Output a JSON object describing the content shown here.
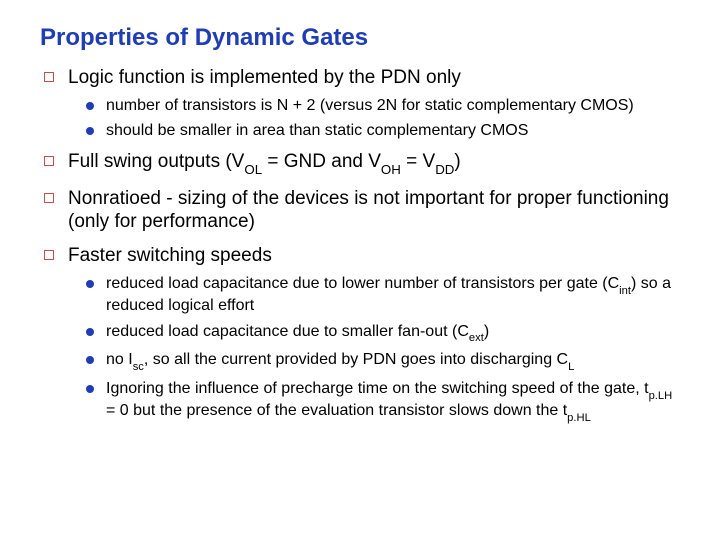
{
  "title": "Properties of Dynamic Gates",
  "colors": {
    "title": "#1f3db5",
    "bullet_level1": "#c05050",
    "bullet_level2": "#1f3db5",
    "text": "#000000",
    "background": "#ffffff"
  },
  "typography": {
    "title_fontsize": 24,
    "level1_fontsize": 19,
    "level2_fontsize": 16,
    "font_family": "Arial"
  },
  "items": [
    {
      "text": "Logic function is implemented by the PDN only",
      "sub": [
        {
          "text": "number of transistors is N + 2 (versus 2N for static complementary CMOS)"
        },
        {
          "text": "should be smaller in area than static complementary CMOS"
        }
      ]
    },
    {
      "html": "Full swing outputs (V<span class='sub'>OL</span> = GND and V<span class='sub'>OH</span> = V<span class='sub'>DD</span>)"
    },
    {
      "text": "Nonratioed - sizing of the devices is not important for proper functioning  (only for performance)"
    },
    {
      "text": "Faster switching speeds",
      "sub": [
        {
          "html": "reduced load capacitance due to lower number of transistors per gate (C<span class='sub'>int</span>) so a reduced logical effort"
        },
        {
          "html": "reduced load capacitance due to smaller fan-out (C<span class='sub'>ext</span>)"
        },
        {
          "html": "no I<span class='sub'>sc</span>, so all the current provided by PDN goes into discharging C<span class='sub'>L</span>"
        },
        {
          "html": "Ignoring the influence of precharge time on the switching speed of the gate, t<span class='sub'>p.LH</span> = 0 but the presence of the evaluation transistor slows down the t<span class='sub'>p.HL</span>"
        }
      ]
    }
  ]
}
